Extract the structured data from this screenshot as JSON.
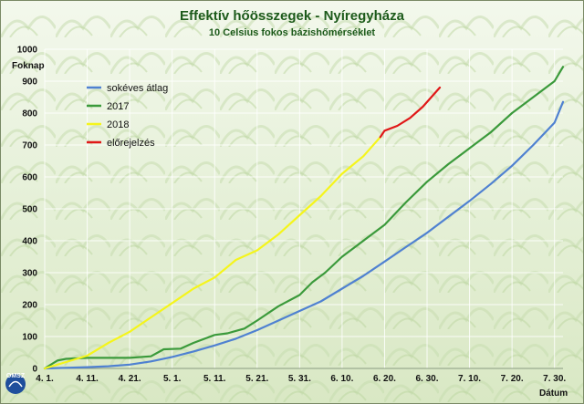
{
  "chart_data": {
    "type": "line",
    "title": "Effektív hőösszegek - Nyíregyháza",
    "subtitle": "10 Celsius fokos bázishőmérséklet",
    "ylabel": "Foknap",
    "xlabel": "Dátum",
    "ylim": [
      0,
      1000
    ],
    "y_ticks": [
      0,
      100,
      200,
      300,
      400,
      500,
      600,
      700,
      800,
      900,
      1000
    ],
    "x_range": [
      "04-01",
      "08-01"
    ],
    "x_ticks": [
      {
        "date": "04-01",
        "label": "4. 1."
      },
      {
        "date": "04-11",
        "label": "4. 11."
      },
      {
        "date": "04-21",
        "label": "4. 21."
      },
      {
        "date": "05-01",
        "label": "5. 1."
      },
      {
        "date": "05-11",
        "label": "5. 11."
      },
      {
        "date": "05-21",
        "label": "5. 21."
      },
      {
        "date": "05-31",
        "label": "5. 31."
      },
      {
        "date": "06-10",
        "label": "6. 10."
      },
      {
        "date": "06-20",
        "label": "6. 20."
      },
      {
        "date": "06-30",
        "label": "6. 30."
      },
      {
        "date": "07-10",
        "label": "7. 10."
      },
      {
        "date": "07-20",
        "label": "7. 20."
      },
      {
        "date": "07-30",
        "label": "7. 30."
      }
    ],
    "grid": true,
    "legend_position": "top-left",
    "series": [
      {
        "name": "sokéves átlag",
        "color": "#4f81d1",
        "points": [
          [
            "04-01",
            0
          ],
          [
            "04-06",
            2
          ],
          [
            "04-11",
            4
          ],
          [
            "04-16",
            7
          ],
          [
            "04-21",
            12
          ],
          [
            "04-26",
            22
          ],
          [
            "05-01",
            36
          ],
          [
            "05-06",
            53
          ],
          [
            "05-11",
            72
          ],
          [
            "05-16",
            93
          ],
          [
            "05-21",
            120
          ],
          [
            "05-26",
            150
          ],
          [
            "05-31",
            180
          ],
          [
            "06-05",
            210
          ],
          [
            "06-10",
            250
          ],
          [
            "06-15",
            290
          ],
          [
            "06-20",
            335
          ],
          [
            "06-25",
            380
          ],
          [
            "06-30",
            425
          ],
          [
            "07-05",
            475
          ],
          [
            "07-10",
            525
          ],
          [
            "07-15",
            578
          ],
          [
            "07-20",
            635
          ],
          [
            "07-25",
            700
          ],
          [
            "07-30",
            770
          ],
          [
            "08-01",
            835
          ]
        ]
      },
      {
        "name": "2017",
        "color": "#3b9a3b",
        "points": [
          [
            "04-01",
            0
          ],
          [
            "04-04",
            25
          ],
          [
            "04-06",
            30
          ],
          [
            "04-11",
            33
          ],
          [
            "04-16",
            33
          ],
          [
            "04-21",
            33
          ],
          [
            "04-26",
            38
          ],
          [
            "04-29",
            60
          ],
          [
            "05-03",
            62
          ],
          [
            "05-06",
            80
          ],
          [
            "05-11",
            105
          ],
          [
            "05-14",
            110
          ],
          [
            "05-18",
            125
          ],
          [
            "05-21",
            150
          ],
          [
            "05-26",
            195
          ],
          [
            "05-31",
            230
          ],
          [
            "06-03",
            270
          ],
          [
            "06-06",
            300
          ],
          [
            "06-10",
            350
          ],
          [
            "06-13",
            380
          ],
          [
            "06-16",
            410
          ],
          [
            "06-20",
            450
          ],
          [
            "06-25",
            520
          ],
          [
            "06-30",
            585
          ],
          [
            "07-05",
            640
          ],
          [
            "07-10",
            690
          ],
          [
            "07-15",
            740
          ],
          [
            "07-20",
            800
          ],
          [
            "07-25",
            850
          ],
          [
            "07-30",
            900
          ],
          [
            "08-01",
            945
          ]
        ]
      },
      {
        "name": "2018",
        "color": "#f5f51b",
        "points": [
          [
            "04-01",
            0
          ],
          [
            "04-06",
            20
          ],
          [
            "04-11",
            40
          ],
          [
            "04-16",
            80
          ],
          [
            "04-21",
            115
          ],
          [
            "04-26",
            160
          ],
          [
            "05-01",
            205
          ],
          [
            "05-06",
            250
          ],
          [
            "05-11",
            285
          ],
          [
            "05-16",
            340
          ],
          [
            "05-21",
            370
          ],
          [
            "05-26",
            420
          ],
          [
            "05-31",
            480
          ],
          [
            "06-05",
            540
          ],
          [
            "06-10",
            610
          ],
          [
            "06-15",
            665
          ],
          [
            "06-19",
            725
          ]
        ]
      },
      {
        "name": "előrejelzés",
        "color": "#e01818",
        "points": [
          [
            "06-19",
            725
          ],
          [
            "06-20",
            745
          ],
          [
            "06-23",
            760
          ],
          [
            "06-26",
            785
          ],
          [
            "06-29",
            820
          ],
          [
            "07-01",
            850
          ],
          [
            "07-03",
            880
          ]
        ]
      }
    ]
  },
  "logo": {
    "text": "OMSZ"
  }
}
